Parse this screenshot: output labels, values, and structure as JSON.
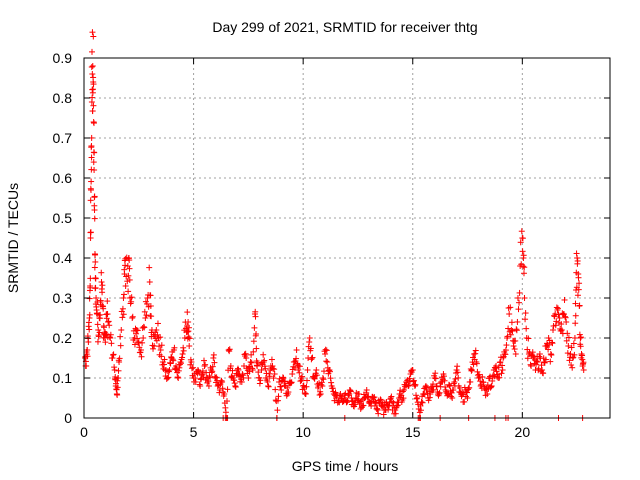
{
  "chart_data": {
    "type": "scatter",
    "title": "Day 299 of 2021, SRMTID for receiver thtg",
    "xlabel": "GPS time / hours",
    "ylabel": "SRMTID / TECUs",
    "xlim": [
      0,
      24
    ],
    "ylim": [
      0,
      0.9
    ],
    "xticks": [
      0,
      5,
      10,
      15,
      20
    ],
    "xtick_labels": [
      "0",
      "5",
      "10",
      "15",
      "20"
    ],
    "yticks": [
      0,
      0.1,
      0.2,
      0.3,
      0.4,
      0.5,
      0.6,
      0.7,
      0.8,
      0.9
    ],
    "ytick_labels": [
      "0",
      "0.1",
      "0.2",
      "0.3",
      "0.4",
      "0.5",
      "0.6",
      "0.7",
      "0.8",
      "0.9"
    ],
    "grid": true,
    "marker": "+",
    "color": "#ff0000",
    "series": [
      {
        "name": "SRMTID",
        "points": [
          [
            0.05,
            0.15
          ],
          [
            0.1,
            0.13
          ],
          [
            0.15,
            0.17
          ],
          [
            0.2,
            0.19
          ],
          [
            0.25,
            0.25
          ],
          [
            0.28,
            0.33
          ],
          [
            0.3,
            0.45
          ],
          [
            0.32,
            0.57
          ],
          [
            0.34,
            0.68
          ],
          [
            0.36,
            0.79
          ],
          [
            0.38,
            0.86
          ],
          [
            0.4,
            0.88
          ],
          [
            0.42,
            0.84
          ],
          [
            0.44,
            0.74
          ],
          [
            0.46,
            0.62
          ],
          [
            0.48,
            0.52
          ],
          [
            0.5,
            0.41
          ],
          [
            0.52,
            0.35
          ],
          [
            0.55,
            0.3
          ],
          [
            0.6,
            0.26
          ],
          [
            0.65,
            0.22
          ],
          [
            0.7,
            0.25
          ],
          [
            0.75,
            0.29
          ],
          [
            0.8,
            0.34
          ],
          [
            0.85,
            0.28
          ],
          [
            0.9,
            0.23
          ],
          [
            0.95,
            0.2
          ],
          [
            1.0,
            0.21
          ],
          [
            1.05,
            0.26
          ],
          [
            1.1,
            0.24
          ],
          [
            1.2,
            0.2
          ],
          [
            1.3,
            0.15
          ],
          [
            1.4,
            0.12
          ],
          [
            1.45,
            0.08
          ],
          [
            1.5,
            0.06
          ],
          [
            1.55,
            0.1
          ],
          [
            1.6,
            0.14
          ],
          [
            1.7,
            0.22
          ],
          [
            1.8,
            0.3
          ],
          [
            1.85,
            0.36
          ],
          [
            1.9,
            0.33
          ],
          [
            2.0,
            0.38
          ],
          [
            2.05,
            0.4
          ],
          [
            2.1,
            0.3
          ],
          [
            2.2,
            0.25
          ],
          [
            2.3,
            0.2
          ],
          [
            2.4,
            0.22
          ],
          [
            2.5,
            0.19
          ],
          [
            2.6,
            0.17
          ],
          [
            2.7,
            0.2
          ],
          [
            2.8,
            0.25
          ],
          [
            2.9,
            0.3
          ],
          [
            3.0,
            0.34
          ],
          [
            3.05,
            0.28
          ],
          [
            3.1,
            0.22
          ],
          [
            3.2,
            0.18
          ],
          [
            3.3,
            0.22
          ],
          [
            3.4,
            0.2
          ],
          [
            3.5,
            0.17
          ],
          [
            3.6,
            0.14
          ],
          [
            3.7,
            0.12
          ],
          [
            3.8,
            0.1
          ],
          [
            3.9,
            0.12
          ],
          [
            4.0,
            0.15
          ],
          [
            4.1,
            0.17
          ],
          [
            4.2,
            0.13
          ],
          [
            4.3,
            0.1
          ],
          [
            4.4,
            0.14
          ],
          [
            4.5,
            0.16
          ],
          [
            4.6,
            0.2
          ],
          [
            4.7,
            0.23
          ],
          [
            4.75,
            0.24
          ],
          [
            4.8,
            0.18
          ],
          [
            4.9,
            0.14
          ],
          [
            5.0,
            0.1
          ],
          [
            5.1,
            0.09
          ],
          [
            5.2,
            0.12
          ],
          [
            5.3,
            0.08
          ],
          [
            5.4,
            0.11
          ],
          [
            5.5,
            0.13
          ],
          [
            5.6,
            0.1
          ],
          [
            5.7,
            0.08
          ],
          [
            5.8,
            0.12
          ],
          [
            5.9,
            0.15
          ],
          [
            6.0,
            0.1
          ],
          [
            6.1,
            0.08
          ],
          [
            6.2,
            0.07
          ],
          [
            6.3,
            0.09
          ],
          [
            6.4,
            0.06
          ],
          [
            6.5,
            0.0
          ],
          [
            6.6,
            0.17
          ],
          [
            6.7,
            0.13
          ],
          [
            6.8,
            0.1
          ],
          [
            6.9,
            0.08
          ],
          [
            7.0,
            0.12
          ],
          [
            7.1,
            0.11
          ],
          [
            7.2,
            0.09
          ],
          [
            7.3,
            0.13
          ],
          [
            7.4,
            0.15
          ],
          [
            7.5,
            0.1
          ],
          [
            7.6,
            0.14
          ],
          [
            7.7,
            0.12
          ],
          [
            7.8,
            0.26
          ],
          [
            7.85,
            0.21
          ],
          [
            7.9,
            0.13
          ],
          [
            8.0,
            0.1
          ],
          [
            8.1,
            0.12
          ],
          [
            8.2,
            0.14
          ],
          [
            8.3,
            0.1
          ],
          [
            8.4,
            0.08
          ],
          [
            8.5,
            0.12
          ],
          [
            8.6,
            0.13
          ],
          [
            8.7,
            0.11
          ],
          [
            8.8,
            0.0
          ],
          [
            8.9,
            0.09
          ],
          [
            9.0,
            0.07
          ],
          [
            9.1,
            0.1
          ],
          [
            9.2,
            0.08
          ],
          [
            9.3,
            0.06
          ],
          [
            9.4,
            0.09
          ],
          [
            9.5,
            0.11
          ],
          [
            9.6,
            0.14
          ],
          [
            9.7,
            0.17
          ],
          [
            9.8,
            0.13
          ],
          [
            9.9,
            0.1
          ],
          [
            10.0,
            0.08
          ],
          [
            10.1,
            0.06
          ],
          [
            10.2,
            0.12
          ],
          [
            10.3,
            0.2
          ],
          [
            10.4,
            0.15
          ],
          [
            10.5,
            0.1
          ],
          [
            10.6,
            0.12
          ],
          [
            10.7,
            0.08
          ],
          [
            10.8,
            0.06
          ],
          [
            10.9,
            0.1
          ],
          [
            11.0,
            0.16
          ],
          [
            11.1,
            0.14
          ],
          [
            11.2,
            0.12
          ],
          [
            11.3,
            0.08
          ],
          [
            11.4,
            0.06
          ],
          [
            11.5,
            0.05
          ],
          [
            11.6,
            0.04
          ],
          [
            11.7,
            0.06
          ],
          [
            11.8,
            0.04
          ],
          [
            11.9,
            0.05
          ],
          [
            12.0,
            0.04
          ],
          [
            12.1,
            0.06
          ],
          [
            12.2,
            0.05
          ],
          [
            12.3,
            0.03
          ],
          [
            12.4,
            0.05
          ],
          [
            12.5,
            0.06
          ],
          [
            12.6,
            0.04
          ],
          [
            12.7,
            0.03
          ],
          [
            12.8,
            0.05
          ],
          [
            12.9,
            0.07
          ],
          [
            13.0,
            0.04
          ],
          [
            13.1,
            0.03
          ],
          [
            13.2,
            0.05
          ],
          [
            13.3,
            0.04
          ],
          [
            13.4,
            0.02
          ],
          [
            13.5,
            0.04
          ],
          [
            13.6,
            0.03
          ],
          [
            13.7,
            0.02
          ],
          [
            13.8,
            0.04
          ],
          [
            13.9,
            0.03
          ],
          [
            14.0,
            0.05
          ],
          [
            14.1,
            0.03
          ],
          [
            14.2,
            0.02
          ],
          [
            14.3,
            0.04
          ],
          [
            14.4,
            0.06
          ],
          [
            14.5,
            0.04
          ],
          [
            14.6,
            0.07
          ],
          [
            14.7,
            0.09
          ],
          [
            14.8,
            0.08
          ],
          [
            14.9,
            0.11
          ],
          [
            15.0,
            0.12
          ],
          [
            15.1,
            0.08
          ],
          [
            15.2,
            0.05
          ],
          [
            15.3,
            0.0
          ],
          [
            15.4,
            0.04
          ],
          [
            15.5,
            0.06
          ],
          [
            15.6,
            0.08
          ],
          [
            15.7,
            0.05
          ],
          [
            15.8,
            0.06
          ],
          [
            15.9,
            0.07
          ],
          [
            16.0,
            0.1
          ],
          [
            16.1,
            0.08
          ],
          [
            16.2,
            0.06
          ],
          [
            16.3,
            0.09
          ],
          [
            16.4,
            0.11
          ],
          [
            16.5,
            0.07
          ],
          [
            16.6,
            0.06
          ],
          [
            16.7,
            0.08
          ],
          [
            16.8,
            0.05
          ],
          [
            16.9,
            0.09
          ],
          [
            17.0,
            0.12
          ],
          [
            17.1,
            0.08
          ],
          [
            17.2,
            0.06
          ],
          [
            17.3,
            0.04
          ],
          [
            17.4,
            0.07
          ],
          [
            17.5,
            0.05
          ],
          [
            17.6,
            0.09
          ],
          [
            17.7,
            0.12
          ],
          [
            17.8,
            0.16
          ],
          [
            17.9,
            0.14
          ],
          [
            18.0,
            0.1
          ],
          [
            18.1,
            0.08
          ],
          [
            18.2,
            0.09
          ],
          [
            18.3,
            0.07
          ],
          [
            18.4,
            0.06
          ],
          [
            18.5,
            0.1
          ],
          [
            18.6,
            0.08
          ],
          [
            18.7,
            0.12
          ],
          [
            18.8,
            0.13
          ],
          [
            18.9,
            0.1
          ],
          [
            19.0,
            0.14
          ],
          [
            19.1,
            0.12
          ],
          [
            19.2,
            0.16
          ],
          [
            19.3,
            0.2
          ],
          [
            19.4,
            0.26
          ],
          [
            19.5,
            0.22
          ],
          [
            19.6,
            0.18
          ],
          [
            19.7,
            0.16
          ],
          [
            19.8,
            0.3
          ],
          [
            19.9,
            0.38
          ],
          [
            20.0,
            0.45
          ],
          [
            20.05,
            0.4
          ],
          [
            20.1,
            0.3
          ],
          [
            20.2,
            0.2
          ],
          [
            20.3,
            0.16
          ],
          [
            20.4,
            0.13
          ],
          [
            20.5,
            0.15
          ],
          [
            20.6,
            0.12
          ],
          [
            20.7,
            0.14
          ],
          [
            20.8,
            0.16
          ],
          [
            20.9,
            0.12
          ],
          [
            21.0,
            0.14
          ],
          [
            21.1,
            0.18
          ],
          [
            21.2,
            0.2
          ],
          [
            21.3,
            0.16
          ],
          [
            21.4,
            0.22
          ],
          [
            21.5,
            0.26
          ],
          [
            21.6,
            0.27
          ],
          [
            21.7,
            0.25
          ],
          [
            21.8,
            0.22
          ],
          [
            21.9,
            0.26
          ],
          [
            22.0,
            0.24
          ],
          [
            22.1,
            0.18
          ],
          [
            22.2,
            0.16
          ],
          [
            22.3,
            0.15
          ],
          [
            22.4,
            0.2
          ],
          [
            22.45,
            0.32
          ],
          [
            22.5,
            0.4
          ],
          [
            22.55,
            0.36
          ],
          [
            22.6,
            0.28
          ],
          [
            22.65,
            0.2
          ],
          [
            22.7,
            0.16
          ],
          [
            22.75,
            0.13
          ],
          [
            22.8,
            0.12
          ]
        ]
      }
    ],
    "zero_markers": [
      6.35,
      6.45,
      6.55,
      8.8,
      11.9,
      15.25,
      15.35,
      16.25,
      17.55,
      18.75,
      19.25,
      19.35,
      21.65,
      22.75
    ]
  }
}
